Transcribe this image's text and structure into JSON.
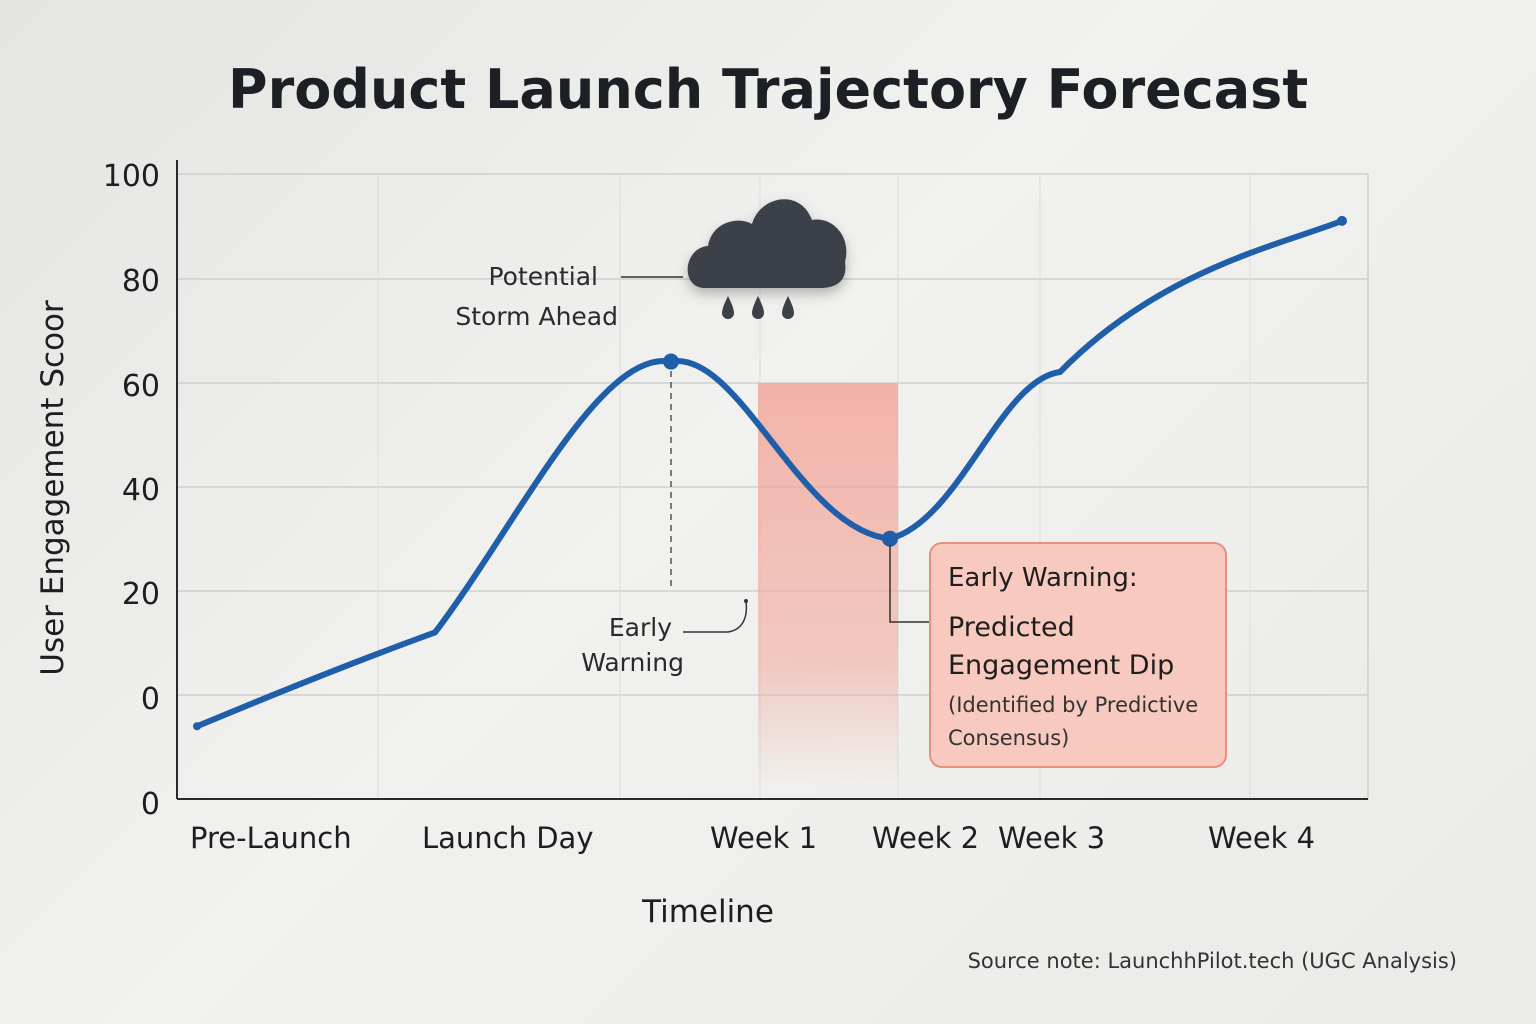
{
  "chart_data": {
    "type": "line",
    "title": "Product Launch Trajectory Forecast",
    "xlabel": "Timeline",
    "ylabel": "User Engagement Scoor",
    "categories": [
      "Pre-Launch",
      "Launch Day",
      "Week 1",
      "Week 2",
      "Week 3",
      "Week 4"
    ],
    "y_tick_labels": [
      "0",
      "0",
      "20",
      "40",
      "60",
      "80",
      "100"
    ],
    "series": [
      {
        "color": "#1f5faa",
        "points": [
          {
            "x": "Pre-Launch",
            "y": -6
          },
          {
            "x": "Launch Day",
            "y": 12
          },
          {
            "x": "Week 1",
            "y": 64
          },
          {
            "x": "Week 2",
            "y": 30
          },
          {
            "x": "Week 3",
            "y": 62
          },
          {
            "x": "Week 4",
            "y": 91
          }
        ]
      }
    ],
    "grid": true,
    "highlight_region": {
      "from": "Week 1",
      "to": "Week 2",
      "color": "#f2a89c"
    }
  },
  "annotations": {
    "storm_line1": "Potential",
    "storm_line2": "Storm Ahead",
    "early_line1": "Early",
    "early_line2": "Warning",
    "box_title": "Early Warning:",
    "box_line1": "Predicted",
    "box_line2": "Engagement Dip",
    "box_line3": "(Identified by Predictive",
    "box_line4": "Consensus)"
  },
  "icons": {
    "storm": "rain-cloud-icon"
  },
  "source_note": "Source note: LaunchhPilot.tech (UGC Analysis)",
  "colors": {
    "line": "#1f5faa",
    "warning_fill": "#f2a89c",
    "box_fill": "#f7c9bf",
    "box_border": "#e98f80",
    "cloud": "#3b4148"
  }
}
